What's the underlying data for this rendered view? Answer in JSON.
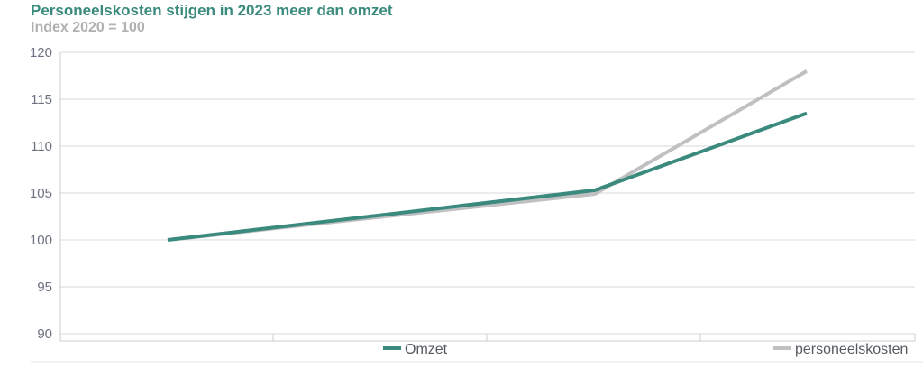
{
  "chart_data": {
    "type": "line",
    "title": "Personeelskosten stijgen in 2023 meer dan omzet",
    "subtitle": "Index 2020 = 100",
    "xlabel": "",
    "ylabel": "",
    "x": [
      "",
      "",
      ""
    ],
    "ylim": [
      90,
      120
    ],
    "yticks": [
      90,
      95,
      100,
      105,
      110,
      115,
      120
    ],
    "grid": true,
    "legend_position": "bottom",
    "series": [
      {
        "name": "Omzet",
        "color": "#3a8a7e",
        "values": [
          100,
          105.3,
          113.5
        ]
      },
      {
        "name": "personeelskosten",
        "color": "#c0c0c2",
        "values": [
          100,
          104.9,
          118
        ]
      }
    ]
  }
}
